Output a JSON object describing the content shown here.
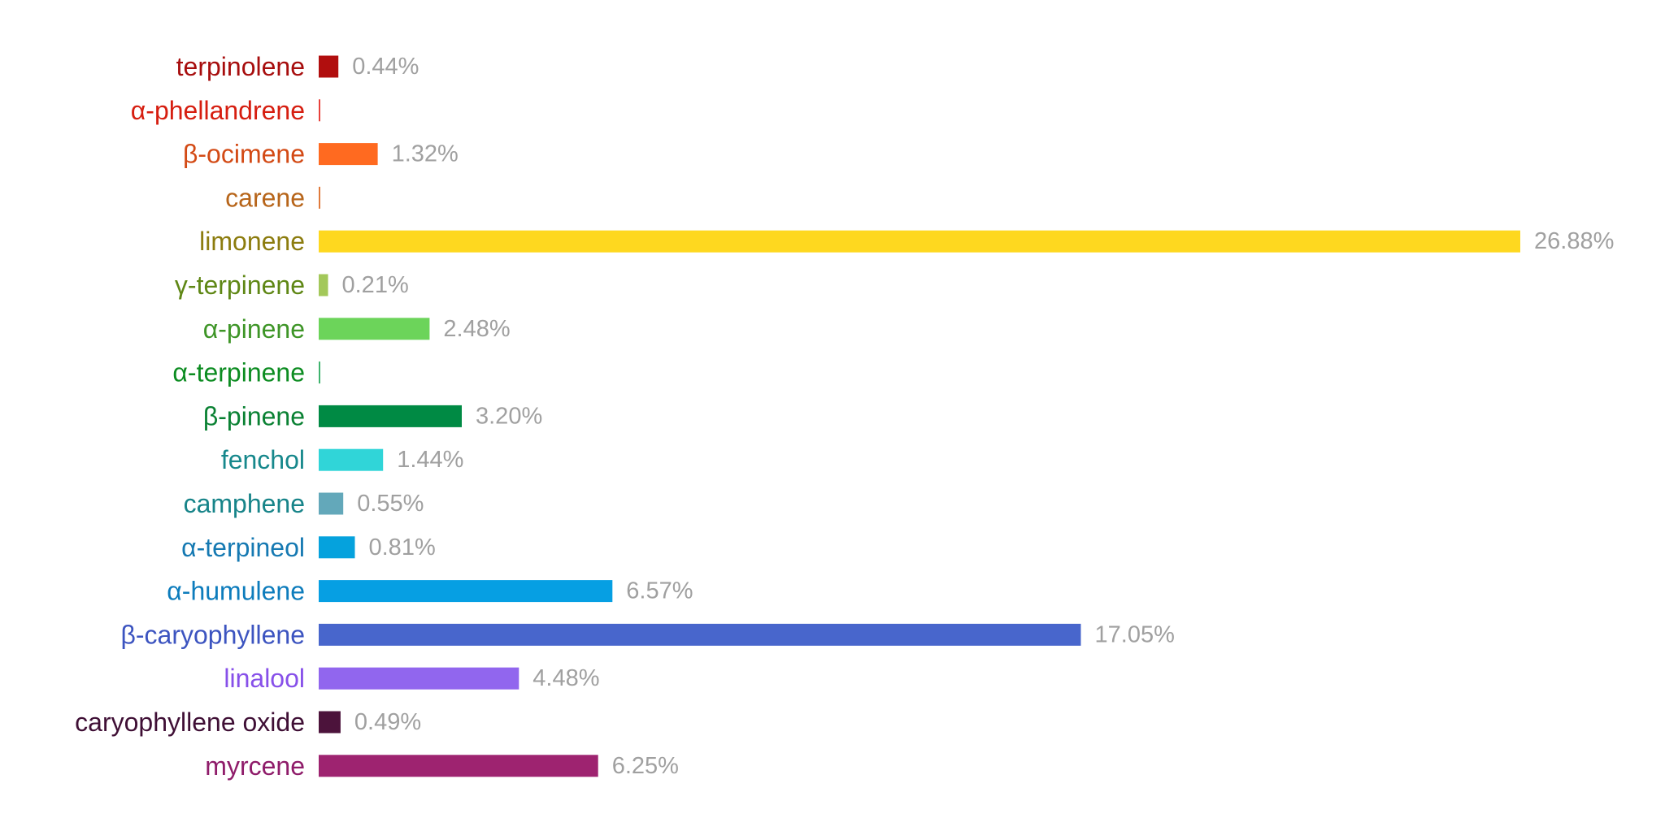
{
  "chart_data": {
    "type": "bar",
    "orientation": "horizontal",
    "categories": [
      "terpinolene",
      "α-phellandrene",
      "β-ocimene",
      "carene",
      "limonene",
      "γ-terpinene",
      "α-pinene",
      "α-terpinene",
      "β-pinene",
      "fenchol",
      "camphene",
      "α-terpineol",
      "α-humulene",
      "β-caryophyllene",
      "linalool",
      "caryophyllene oxide",
      "myrcene"
    ],
    "values": [
      0.44,
      0.02,
      1.32,
      0.02,
      26.88,
      0.21,
      2.48,
      0.02,
      3.2,
      1.44,
      0.55,
      0.81,
      6.57,
      17.05,
      4.48,
      0.49,
      6.25
    ],
    "value_labels": [
      "0.44%",
      "",
      "1.32%",
      "",
      "26.88%",
      "0.21%",
      "2.48%",
      "",
      "3.20%",
      "1.44%",
      "0.55%",
      "0.81%",
      "6.57%",
      "17.05%",
      "4.48%",
      "0.49%",
      "6.25%"
    ],
    "bar_colors": [
      "#b10e0e",
      "#e8413c",
      "#ff6a20",
      "#e07a3c",
      "#fed81f",
      "#a3c85a",
      "#6cd45a",
      "#3fb36e",
      "#008a44",
      "#30d5d8",
      "#63a8ba",
      "#05a2dd",
      "#069fe3",
      "#4866cc",
      "#9166ee",
      "#4c133b",
      "#9e2370"
    ],
    "label_colors": [
      "#a70d0d",
      "#d61e10",
      "#d34a15",
      "#b7651a",
      "#8c7c0e",
      "#5f8715",
      "#3e9527",
      "#0c8c21",
      "#0a8133",
      "#17888c",
      "#178489",
      "#1579b2",
      "#0d7cbc",
      "#3c54c0",
      "#8750e9",
      "#3f0f35",
      "#8f1c6a"
    ],
    "value_label_color": "#a0a0a0",
    "title": "",
    "xlabel": "",
    "ylabel": "",
    "xlim": [
      0,
      27
    ],
    "grid": false,
    "legend": "none"
  }
}
